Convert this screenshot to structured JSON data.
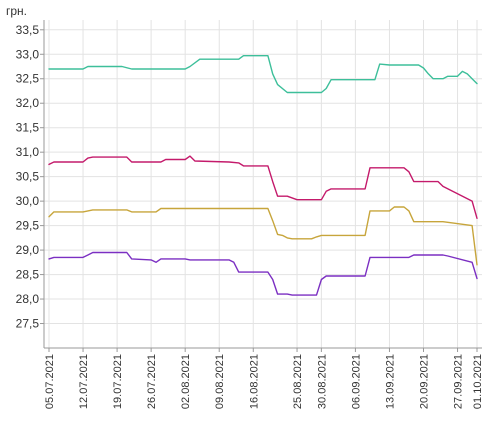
{
  "chart_data": {
    "type": "line",
    "unit_label": "грн.",
    "y_ticks": [
      "27,5",
      "28,0",
      "28,5",
      "29,0",
      "29,5",
      "30,0",
      "30,5",
      "31,0",
      "31,5",
      "32,0",
      "32,5",
      "33,0",
      "33,5"
    ],
    "y_tick_values": [
      27.5,
      28.0,
      28.5,
      29.0,
      29.5,
      30.0,
      30.5,
      31.0,
      31.5,
      32.0,
      32.5,
      33.0,
      33.5
    ],
    "ylim": [
      27.0,
      33.7
    ],
    "x_tick_labels": [
      "05.07.2021",
      "12.07.2021",
      "19.07.2021",
      "26.07.2021",
      "02.08.2021",
      "09.08.2021",
      "16.08.2021",
      "25.08.2021",
      "30.08.2021",
      "06.09.2021",
      "13.09.2021",
      "20.09.2021",
      "27.09.2021",
      "01.10.2021"
    ],
    "x_tick_dates": [
      "2021-07-05",
      "2021-07-12",
      "2021-07-19",
      "2021-07-26",
      "2021-08-02",
      "2021-08-09",
      "2021-08-16",
      "2021-08-25",
      "2021-08-30",
      "2021-09-06",
      "2021-09-13",
      "2021-09-20",
      "2021-09-27",
      "2021-10-01"
    ],
    "grid": true,
    "series": [
      {
        "color": "#3dbf9a",
        "points": [
          [
            "2021-07-05",
            32.7
          ],
          [
            "2021-07-12",
            32.7
          ],
          [
            "2021-07-13",
            32.75
          ],
          [
            "2021-07-19",
            32.75
          ],
          [
            "2021-07-20",
            32.75
          ],
          [
            "2021-07-22",
            32.7
          ],
          [
            "2021-07-29",
            32.7
          ],
          [
            "2021-08-02",
            32.7
          ],
          [
            "2021-08-03",
            32.75
          ],
          [
            "2021-08-05",
            32.9
          ],
          [
            "2021-08-13",
            32.9
          ],
          [
            "2021-08-14",
            32.97
          ],
          [
            "2021-08-19",
            32.97
          ],
          [
            "2021-08-20",
            32.6
          ],
          [
            "2021-08-21",
            32.38
          ],
          [
            "2021-08-23",
            32.22
          ],
          [
            "2021-08-30",
            32.22
          ],
          [
            "2021-08-31",
            32.3
          ],
          [
            "2021-09-01",
            32.48
          ],
          [
            "2021-09-10",
            32.48
          ],
          [
            "2021-09-11",
            32.8
          ],
          [
            "2021-09-13",
            32.78
          ],
          [
            "2021-09-19",
            32.78
          ],
          [
            "2021-09-20",
            32.72
          ],
          [
            "2021-09-21",
            32.6
          ],
          [
            "2021-09-22",
            32.5
          ],
          [
            "2021-09-24",
            32.5
          ],
          [
            "2021-09-25",
            32.55
          ],
          [
            "2021-09-27",
            32.55
          ],
          [
            "2021-09-28",
            32.65
          ],
          [
            "2021-09-29",
            32.6
          ],
          [
            "2021-09-30",
            32.5
          ],
          [
            "2021-10-01",
            32.4
          ]
        ]
      },
      {
        "color": "#c41a6b",
        "points": [
          [
            "2021-07-05",
            30.75
          ],
          [
            "2021-07-06",
            30.8
          ],
          [
            "2021-07-12",
            30.8
          ],
          [
            "2021-07-13",
            30.88
          ],
          [
            "2021-07-14",
            30.9
          ],
          [
            "2021-07-21",
            30.9
          ],
          [
            "2021-07-22",
            30.8
          ],
          [
            "2021-07-26",
            30.8
          ],
          [
            "2021-07-28",
            30.8
          ],
          [
            "2021-07-29",
            30.85
          ],
          [
            "2021-08-02",
            30.85
          ],
          [
            "2021-08-03",
            30.92
          ],
          [
            "2021-08-04",
            30.82
          ],
          [
            "2021-08-11",
            30.8
          ],
          [
            "2021-08-13",
            30.78
          ],
          [
            "2021-08-14",
            30.72
          ],
          [
            "2021-08-19",
            30.72
          ],
          [
            "2021-08-20",
            30.4
          ],
          [
            "2021-08-21",
            30.1
          ],
          [
            "2021-08-23",
            30.1
          ],
          [
            "2021-08-25",
            30.03
          ],
          [
            "2021-08-28",
            30.03
          ],
          [
            "2021-08-30",
            30.03
          ],
          [
            "2021-08-31",
            30.2
          ],
          [
            "2021-09-01",
            30.25
          ],
          [
            "2021-09-06",
            30.25
          ],
          [
            "2021-09-08",
            30.25
          ],
          [
            "2021-09-09",
            30.68
          ],
          [
            "2021-09-13",
            30.68
          ],
          [
            "2021-09-16",
            30.68
          ],
          [
            "2021-09-17",
            30.6
          ],
          [
            "2021-09-18",
            30.4
          ],
          [
            "2021-09-23",
            30.4
          ],
          [
            "2021-09-24",
            30.3
          ],
          [
            "2021-09-30",
            30.0
          ],
          [
            "2021-10-01",
            29.65
          ]
        ]
      },
      {
        "color": "#c7a53b",
        "points": [
          [
            "2021-07-05",
            29.68
          ],
          [
            "2021-07-06",
            29.78
          ],
          [
            "2021-07-12",
            29.78
          ],
          [
            "2021-07-13",
            29.8
          ],
          [
            "2021-07-14",
            29.82
          ],
          [
            "2021-07-21",
            29.82
          ],
          [
            "2021-07-22",
            29.78
          ],
          [
            "2021-07-26",
            29.78
          ],
          [
            "2021-07-27",
            29.78
          ],
          [
            "2021-07-28",
            29.85
          ],
          [
            "2021-08-02",
            29.85
          ],
          [
            "2021-08-19",
            29.85
          ],
          [
            "2021-08-20",
            29.6
          ],
          [
            "2021-08-21",
            29.32
          ],
          [
            "2021-08-22",
            29.3
          ],
          [
            "2021-08-23",
            29.25
          ],
          [
            "2021-08-24",
            29.23
          ],
          [
            "2021-08-28",
            29.23
          ],
          [
            "2021-08-29",
            29.27
          ],
          [
            "2021-08-30",
            29.3
          ],
          [
            "2021-09-06",
            29.3
          ],
          [
            "2021-09-08",
            29.3
          ],
          [
            "2021-09-09",
            29.8
          ],
          [
            "2021-09-13",
            29.8
          ],
          [
            "2021-09-14",
            29.88
          ],
          [
            "2021-09-16",
            29.88
          ],
          [
            "2021-09-17",
            29.8
          ],
          [
            "2021-09-18",
            29.58
          ],
          [
            "2021-09-23",
            29.58
          ],
          [
            "2021-09-24",
            29.58
          ],
          [
            "2021-09-30",
            29.5
          ],
          [
            "2021-10-01",
            28.7
          ]
        ]
      },
      {
        "color": "#7b2fc2",
        "points": [
          [
            "2021-07-05",
            28.82
          ],
          [
            "2021-07-06",
            28.85
          ],
          [
            "2021-07-12",
            28.85
          ],
          [
            "2021-07-13",
            28.9
          ],
          [
            "2021-07-14",
            28.95
          ],
          [
            "2021-07-21",
            28.95
          ],
          [
            "2021-07-22",
            28.82
          ],
          [
            "2021-07-26",
            28.8
          ],
          [
            "2021-07-27",
            28.75
          ],
          [
            "2021-07-28",
            28.82
          ],
          [
            "2021-08-02",
            28.82
          ],
          [
            "2021-08-03",
            28.8
          ],
          [
            "2021-08-11",
            28.8
          ],
          [
            "2021-08-12",
            28.75
          ],
          [
            "2021-08-13",
            28.55
          ],
          [
            "2021-08-19",
            28.55
          ],
          [
            "2021-08-20",
            28.4
          ],
          [
            "2021-08-21",
            28.1
          ],
          [
            "2021-08-23",
            28.1
          ],
          [
            "2021-08-24",
            28.08
          ],
          [
            "2021-08-29",
            28.08
          ],
          [
            "2021-08-30",
            28.4
          ],
          [
            "2021-08-31",
            28.47
          ],
          [
            "2021-09-06",
            28.47
          ],
          [
            "2021-09-08",
            28.47
          ],
          [
            "2021-09-09",
            28.85
          ],
          [
            "2021-09-13",
            28.85
          ],
          [
            "2021-09-17",
            28.85
          ],
          [
            "2021-09-18",
            28.9
          ],
          [
            "2021-09-24",
            28.9
          ],
          [
            "2021-09-25",
            28.88
          ],
          [
            "2021-09-30",
            28.75
          ],
          [
            "2021-10-01",
            28.42
          ]
        ]
      }
    ]
  }
}
